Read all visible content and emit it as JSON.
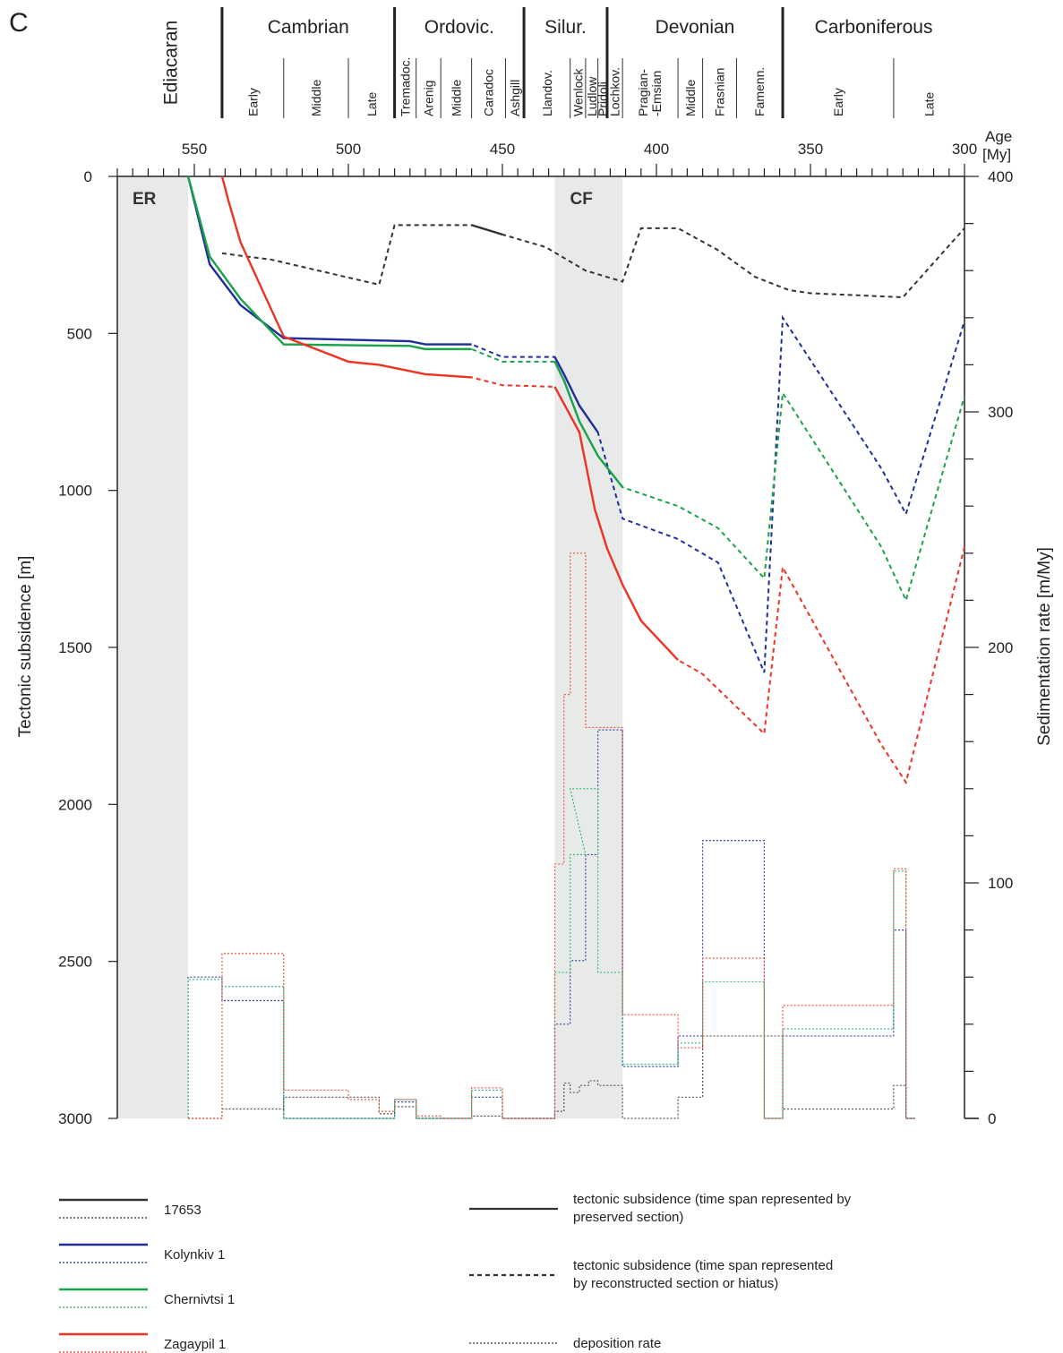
{
  "chart_data": {
    "type": "line",
    "panel_label": "C",
    "x_axis": {
      "label_line1": "Age",
      "label_line2": "[My]",
      "range": [
        575,
        300
      ],
      "ticks": [
        {
          "value": 550,
          "label": "550"
        },
        {
          "value": 500,
          "label": "500"
        },
        {
          "value": 450,
          "label": "450"
        },
        {
          "value": 400,
          "label": "400"
        },
        {
          "value": 350,
          "label": "350"
        },
        {
          "value": 300,
          "label": "300"
        }
      ]
    },
    "y_left": {
      "label": "Tectonic subsidence [m]",
      "range": [
        0,
        3000
      ],
      "ticks": [
        {
          "value": 0,
          "label": "0"
        },
        {
          "value": 500,
          "label": "500"
        },
        {
          "value": 1000,
          "label": "1000"
        },
        {
          "value": 1500,
          "label": "1500"
        },
        {
          "value": 2000,
          "label": "2000"
        },
        {
          "value": 2500,
          "label": "2500"
        },
        {
          "value": 3000,
          "label": "3000"
        }
      ]
    },
    "y_right": {
      "label": "Sedimentation rate [m/My]",
      "range": [
        0,
        400
      ],
      "ticks": [
        {
          "value": 0,
          "label": "0"
        },
        {
          "value": 100,
          "label": "100"
        },
        {
          "value": 200,
          "label": "200"
        },
        {
          "value": 300,
          "label": "300"
        },
        {
          "value": 400,
          "label": "400"
        }
      ]
    },
    "periods": [
      {
        "name": "Ediacaran",
        "start": 575,
        "end": 541,
        "vertical": true
      },
      {
        "name": "Cambrian",
        "start": 541,
        "end": 485
      },
      {
        "name": "Ordovic.",
        "start": 485,
        "end": 443
      },
      {
        "name": "Silur.",
        "start": 443,
        "end": 416
      },
      {
        "name": "Devonian",
        "start": 416,
        "end": 359
      },
      {
        "name": "Carboniferous",
        "start": 359,
        "end": 300
      }
    ],
    "epochs": [
      {
        "name": "Early",
        "start": 541,
        "end": 521
      },
      {
        "name": "Middle",
        "start": 521,
        "end": 500
      },
      {
        "name": "Late",
        "start": 500,
        "end": 485
      },
      {
        "name": "Tremadoc.",
        "start": 485,
        "end": 478
      },
      {
        "name": "Arenig",
        "start": 478,
        "end": 470
      },
      {
        "name": "Middle",
        "start": 470,
        "end": 460
      },
      {
        "name": "Caradoc",
        "start": 460,
        "end": 449
      },
      {
        "name": "Ashgill",
        "start": 449,
        "end": 443
      },
      {
        "name": "Llandov.",
        "start": 443,
        "end": 428
      },
      {
        "name": "Wenlock",
        "start": 428,
        "end": 423
      },
      {
        "name": "Ludlow",
        "start": 423,
        "end": 419
      },
      {
        "name": "Pridoli",
        "start": 419,
        "end": 416
      },
      {
        "name": "Lochkov.",
        "start": 416,
        "end": 411
      },
      {
        "name": "Pragian-",
        "start": 411,
        "end": 393
      },
      {
        "name": "-Emsian",
        "start": 411,
        "end": 393
      },
      {
        "name": "Middle",
        "start": 393,
        "end": 385
      },
      {
        "name": "Frasnian",
        "start": 385,
        "end": 374
      },
      {
        "name": "Famenn.",
        "start": 374,
        "end": 359
      },
      {
        "name": "Early",
        "start": 359,
        "end": 323
      },
      {
        "name": "Late",
        "start": 323,
        "end": 300
      }
    ],
    "bands": [
      {
        "label": "ER",
        "start": 575,
        "end": 552
      },
      {
        "label": "CF",
        "start": 433,
        "end": 411
      }
    ],
    "subsidence_series": [
      {
        "name": "17653",
        "color": "#333333",
        "points": [
          [
            541,
            245
          ],
          [
            525,
            265
          ],
          [
            490,
            345
          ],
          [
            485,
            155
          ],
          [
            460,
            155
          ],
          [
            450,
            185
          ],
          [
            436,
            225
          ],
          [
            423,
            300
          ],
          [
            411,
            335
          ],
          [
            405,
            165
          ],
          [
            393,
            165
          ],
          [
            380,
            235
          ],
          [
            368,
            320
          ],
          [
            357,
            362
          ],
          [
            350,
            372
          ],
          [
            320,
            385
          ],
          [
            300,
            165
          ]
        ],
        "solid_segments": [
          [
            460,
            450
          ]
        ]
      },
      {
        "name": "Kolynkiv 1",
        "color": "#1f2f9a",
        "points": [
          [
            552,
            0
          ],
          [
            545,
            280
          ],
          [
            535,
            410
          ],
          [
            521,
            515
          ],
          [
            480,
            525
          ],
          [
            475,
            535
          ],
          [
            460,
            535
          ],
          [
            450,
            575
          ],
          [
            433,
            575
          ],
          [
            430,
            630
          ],
          [
            425,
            730
          ],
          [
            419,
            815
          ],
          [
            411,
            1090
          ],
          [
            393,
            1155
          ],
          [
            380,
            1230
          ],
          [
            365,
            1580
          ],
          [
            359,
            450
          ],
          [
            327,
            930
          ],
          [
            319,
            1075
          ],
          [
            300,
            460
          ]
        ],
        "solid_segments": [
          [
            552,
            460
          ],
          [
            433,
            419
          ]
        ]
      },
      {
        "name": "Chernivtsi 1",
        "color": "#1aa34a",
        "points": [
          [
            552,
            0
          ],
          [
            545,
            255
          ],
          [
            535,
            390
          ],
          [
            521,
            535
          ],
          [
            480,
            540
          ],
          [
            475,
            550
          ],
          [
            460,
            550
          ],
          [
            450,
            590
          ],
          [
            433,
            590
          ],
          [
            430,
            650
          ],
          [
            425,
            780
          ],
          [
            419,
            890
          ],
          [
            411,
            990
          ],
          [
            393,
            1050
          ],
          [
            380,
            1120
          ],
          [
            365,
            1280
          ],
          [
            359,
            690
          ],
          [
            327,
            1180
          ],
          [
            319,
            1350
          ],
          [
            300,
            700
          ]
        ],
        "solid_segments": [
          [
            552,
            460
          ],
          [
            433,
            411
          ]
        ]
      },
      {
        "name": "Zagaypil 1",
        "color": "#ee3322",
        "points": [
          [
            541,
            0
          ],
          [
            539,
            75
          ],
          [
            535,
            210
          ],
          [
            521,
            510
          ],
          [
            500,
            590
          ],
          [
            490,
            600
          ],
          [
            475,
            630
          ],
          [
            460,
            640
          ],
          [
            450,
            665
          ],
          [
            433,
            670
          ],
          [
            425,
            815
          ],
          [
            420,
            1060
          ],
          [
            416,
            1185
          ],
          [
            411,
            1300
          ],
          [
            405,
            1415
          ],
          [
            393,
            1540
          ],
          [
            385,
            1585
          ],
          [
            375,
            1680
          ],
          [
            365,
            1775
          ],
          [
            359,
            1245
          ],
          [
            327,
            1810
          ],
          [
            319,
            1930
          ],
          [
            300,
            1180
          ]
        ],
        "solid_segments": [
          [
            541,
            460
          ],
          [
            433,
            393
          ]
        ]
      }
    ],
    "deposition_rate_series": [
      {
        "name": "17653",
        "color": "#555555",
        "steps": [
          [
            552,
            541,
            0
          ],
          [
            541,
            521,
            4
          ],
          [
            521,
            500,
            9
          ],
          [
            500,
            490,
            9
          ],
          [
            490,
            485,
            2
          ],
          [
            485,
            478,
            5
          ],
          [
            478,
            470,
            0
          ],
          [
            470,
            465,
            0
          ],
          [
            465,
            460,
            0
          ],
          [
            460,
            450,
            1
          ],
          [
            450,
            443,
            0
          ],
          [
            443,
            433,
            0
          ],
          [
            433,
            430,
            3
          ],
          [
            430,
            428,
            15
          ],
          [
            428,
            425,
            11
          ],
          [
            425,
            422,
            14
          ],
          [
            422,
            419,
            16
          ],
          [
            419,
            417,
            14
          ],
          [
            417,
            411,
            14
          ],
          [
            411,
            393,
            0
          ],
          [
            393,
            385,
            9
          ],
          [
            385,
            380,
            35
          ],
          [
            380,
            365,
            35
          ],
          [
            365,
            359,
            35
          ],
          [
            359,
            323,
            4
          ],
          [
            323,
            319,
            14
          ],
          [
            319,
            316,
            0
          ]
        ]
      },
      {
        "name": "Kolynkiv 1",
        "color": "#3344aa",
        "steps": [
          [
            552,
            541,
            60
          ],
          [
            541,
            521,
            50
          ],
          [
            521,
            500,
            0
          ],
          [
            500,
            490,
            0
          ],
          [
            490,
            485,
            0
          ],
          [
            485,
            478,
            7
          ],
          [
            478,
            470,
            0
          ],
          [
            470,
            465,
            0
          ],
          [
            465,
            460,
            0
          ],
          [
            460,
            450,
            9
          ],
          [
            450,
            443,
            0
          ],
          [
            443,
            433,
            0
          ],
          [
            433,
            428,
            40
          ],
          [
            428,
            423,
            67
          ],
          [
            423,
            419,
            112
          ],
          [
            419,
            416,
            165
          ],
          [
            416,
            411,
            165
          ],
          [
            411,
            393,
            22
          ],
          [
            393,
            385,
            35
          ],
          [
            385,
            375,
            118
          ],
          [
            375,
            365,
            118
          ],
          [
            365,
            359,
            0
          ],
          [
            359,
            323,
            35
          ],
          [
            323,
            319,
            80
          ],
          [
            319,
            316,
            0
          ]
        ]
      },
      {
        "name": "Chernivtsi 1",
        "color": "#33bb77",
        "steps": [
          [
            552,
            541,
            59
          ],
          [
            541,
            521,
            56
          ],
          [
            521,
            500,
            0
          ],
          [
            500,
            490,
            0
          ],
          [
            490,
            485,
            0
          ],
          [
            485,
            478,
            8
          ],
          [
            478,
            470,
            0
          ],
          [
            470,
            465,
            0
          ],
          [
            465,
            460,
            0
          ],
          [
            460,
            450,
            12
          ],
          [
            450,
            443,
            0
          ],
          [
            443,
            433,
            0
          ],
          [
            433,
            428,
            62
          ],
          [
            428,
            423,
            112
          ],
          [
            428,
            419,
            140
          ],
          [
            419,
            411,
            62
          ],
          [
            411,
            393,
            23
          ],
          [
            393,
            385,
            32
          ],
          [
            385,
            375,
            58
          ],
          [
            375,
            365,
            58
          ],
          [
            365,
            359,
            0
          ],
          [
            359,
            323,
            38
          ],
          [
            323,
            319,
            105
          ],
          [
            319,
            316,
            0
          ]
        ]
      },
      {
        "name": "Zagaypil 1",
        "color": "#ee5544",
        "steps": [
          [
            552,
            541,
            0
          ],
          [
            541,
            521,
            70
          ],
          [
            521,
            500,
            12
          ],
          [
            500,
            490,
            8
          ],
          [
            490,
            485,
            3
          ],
          [
            485,
            478,
            8
          ],
          [
            478,
            470,
            1
          ],
          [
            470,
            465,
            0
          ],
          [
            465,
            460,
            0
          ],
          [
            460,
            450,
            13
          ],
          [
            450,
            443,
            0
          ],
          [
            443,
            433,
            0
          ],
          [
            433,
            430,
            108
          ],
          [
            430,
            428,
            180
          ],
          [
            428,
            423,
            240
          ],
          [
            423,
            419,
            166
          ],
          [
            419,
            411,
            166
          ],
          [
            411,
            393,
            44
          ],
          [
            393,
            385,
            30
          ],
          [
            385,
            375,
            68
          ],
          [
            375,
            365,
            68
          ],
          [
            365,
            359,
            0
          ],
          [
            359,
            323,
            48
          ],
          [
            323,
            319,
            106
          ],
          [
            319,
            316,
            0
          ]
        ]
      }
    ]
  },
  "legend": {
    "wells": [
      {
        "name": "17653",
        "color": "#333333"
      },
      {
        "name": "Kolynkiv 1",
        "color": "#1f2f9a"
      },
      {
        "name": "Chernivtsi 1",
        "color": "#1aa34a"
      },
      {
        "name": "Zagaypil 1",
        "color": "#ee3322"
      }
    ],
    "styles": [
      {
        "kind": "solid",
        "line1": "tectonic subsidence (time span represented by",
        "line2": "preserved section)"
      },
      {
        "kind": "dashed",
        "line1": "tectonic subsidence (time span represented",
        "line2": "by reconstructed section or hiatus)"
      },
      {
        "kind": "dotted",
        "line1": "deposition rate",
        "line2": ""
      }
    ]
  }
}
